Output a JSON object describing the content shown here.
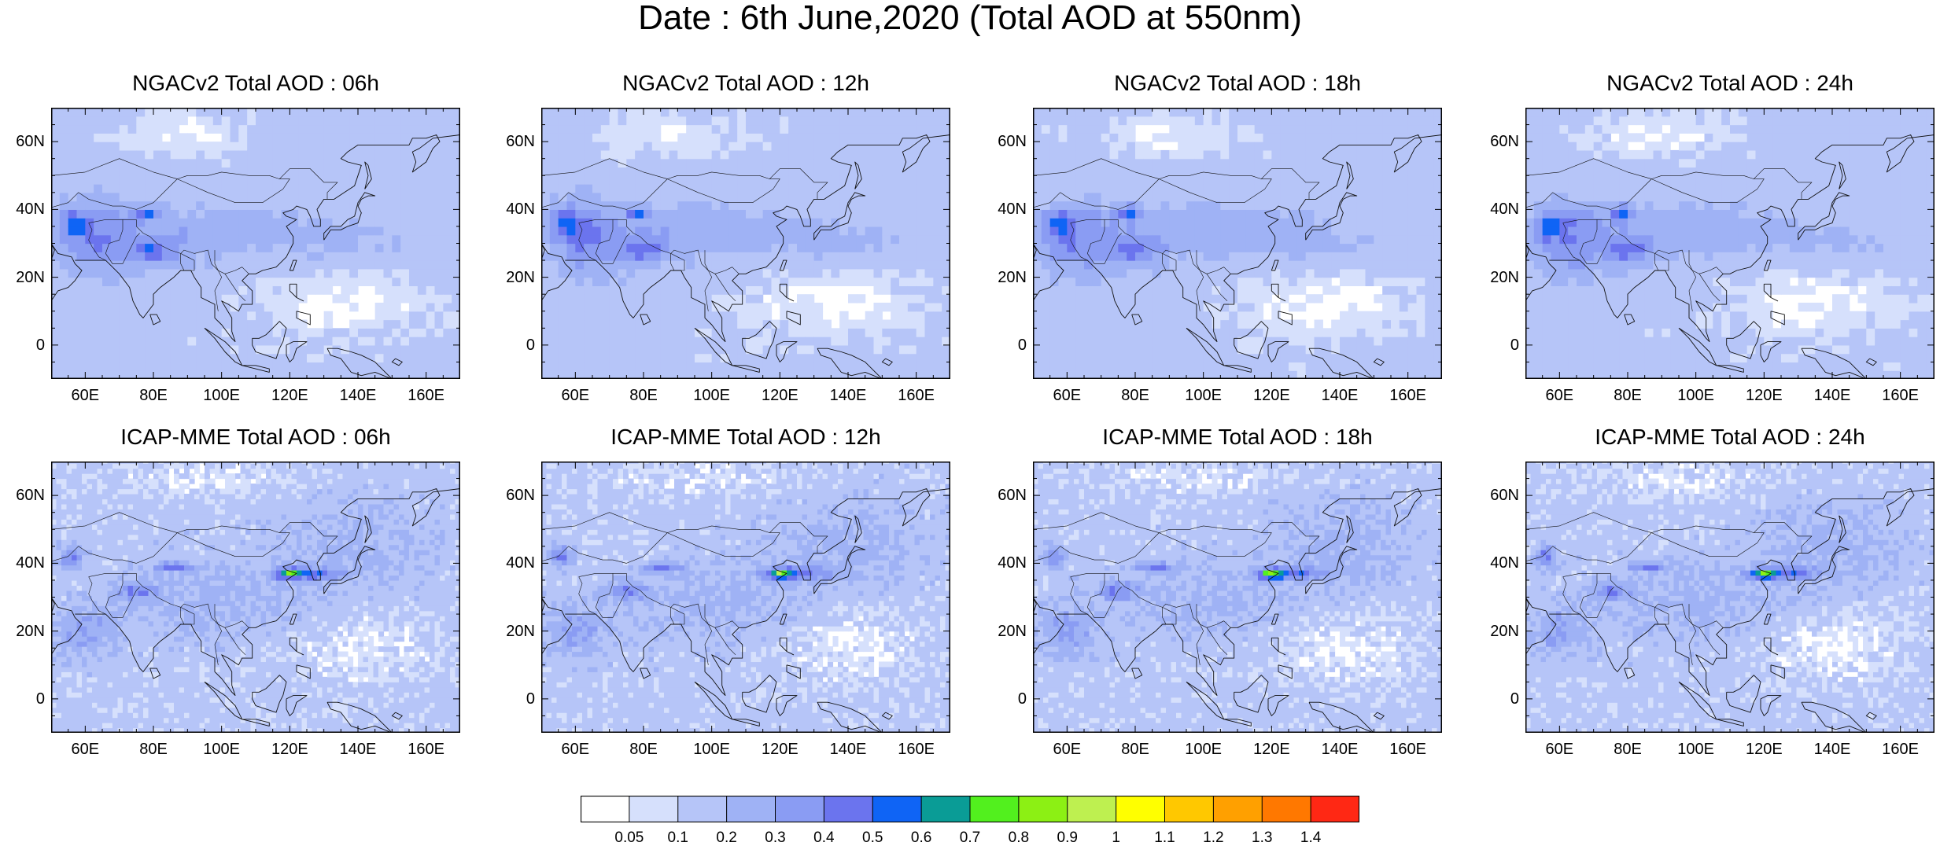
{
  "figure": {
    "title": "Date : 6th June,2020 (Total AOD at 550nm)"
  },
  "map": {
    "lat_ticks": [
      "60N",
      "40N",
      "20N",
      "0"
    ],
    "lat_values": [
      60,
      40,
      20,
      0
    ],
    "lon_ticks": [
      "60E",
      "80E",
      "100E",
      "120E",
      "140E",
      "160E"
    ],
    "lon_values": [
      60,
      80,
      100,
      120,
      140,
      160
    ],
    "lon_range": [
      50,
      170
    ],
    "lat_range": [
      -10,
      70
    ]
  },
  "panels": [
    {
      "title": "NGACv2 Total AOD : 06h",
      "model": "NGACv2",
      "hour": "06h"
    },
    {
      "title": "NGACv2 Total AOD : 12h",
      "model": "NGACv2",
      "hour": "12h"
    },
    {
      "title": "NGACv2 Total AOD : 18h",
      "model": "NGACv2",
      "hour": "18h"
    },
    {
      "title": "NGACv2 Total AOD : 24h",
      "model": "NGACv2",
      "hour": "24h"
    },
    {
      "title": "ICAP-MME Total AOD : 06h",
      "model": "ICAP-MME",
      "hour": "06h"
    },
    {
      "title": "ICAP-MME Total AOD : 12h",
      "model": "ICAP-MME",
      "hour": "12h"
    },
    {
      "title": "ICAP-MME Total AOD : 18h",
      "model": "ICAP-MME",
      "hour": "18h"
    },
    {
      "title": "ICAP-MME Total AOD : 24h",
      "model": "ICAP-MME",
      "hour": "24h"
    }
  ],
  "colorbar": {
    "labels": [
      "0.05",
      "0.1",
      "0.2",
      "0.3",
      "0.4",
      "0.5",
      "0.6",
      "0.7",
      "0.8",
      "0.9",
      "1",
      "1.1",
      "1.2",
      "1.3",
      "1.4"
    ],
    "colors": [
      "#ffffff",
      "#d6e0fc",
      "#b6c5f8",
      "#9fb2f5",
      "#8a9cf3",
      "#6b74ee",
      "#0f64f5",
      "#0a9c96",
      "#52f01e",
      "#8cf014",
      "#bef050",
      "#ffff00",
      "#ffc800",
      "#ffa000",
      "#ff7800",
      "#ff2814"
    ]
  }
}
